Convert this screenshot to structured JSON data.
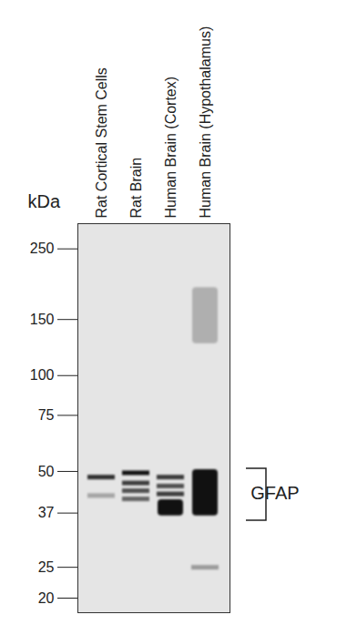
{
  "chart_data": {
    "type": "western_blot",
    "categories": [
      "Rat Cortical Stem Cells",
      "Rat Brain",
      "Human Brain (Cortex)",
      "Human Brain (Hypothalamus)"
    ],
    "y_label": "kDa",
    "log": "y",
    "ylim": [
      18,
      300
    ],
    "yticks": [
      250,
      150,
      100,
      75,
      50,
      37,
      25,
      20
    ],
    "bands": [
      {
        "lane": "Rat Cortical Stem Cells",
        "kda": 48,
        "intensity": 0.85
      },
      {
        "lane": "Rat Cortical Stem Cells",
        "kda": 42,
        "intensity": 0.3
      },
      {
        "lane": "Rat Brain",
        "kda": 49.5,
        "intensity": 1.0
      },
      {
        "lane": "Rat Brain",
        "kda": 46,
        "intensity": 0.8
      },
      {
        "lane": "Rat Brain",
        "kda": 43.5,
        "intensity": 0.7
      },
      {
        "lane": "Rat Brain",
        "kda": 41,
        "intensity": 0.6
      },
      {
        "lane": "Human Brain (Cortex)",
        "kda": 48,
        "intensity": 0.8
      },
      {
        "lane": "Human Brain (Cortex)",
        "kda": 45,
        "intensity": 0.7
      },
      {
        "lane": "Human Brain (Cortex)",
        "kda": 42.5,
        "intensity": 0.8
      },
      {
        "lane": "Human Brain (Hypothalamus)",
        "kda": 25,
        "intensity": 0.35
      }
    ],
    "smears": [
      {
        "lane": "Human Brain (Cortex)",
        "from": 36,
        "to": 41,
        "intensity": 1.0
      },
      {
        "lane": "Human Brain (Hypothalamus)",
        "from": 36,
        "to": 51,
        "intensity": 1.0
      },
      {
        "lane": "Human Brain (Hypothalamus)",
        "from": 125,
        "to": 190,
        "intensity": 0.25
      }
    ],
    "bracket": {
      "text": "GFAP",
      "from": 35,
      "to": 51
    }
  }
}
